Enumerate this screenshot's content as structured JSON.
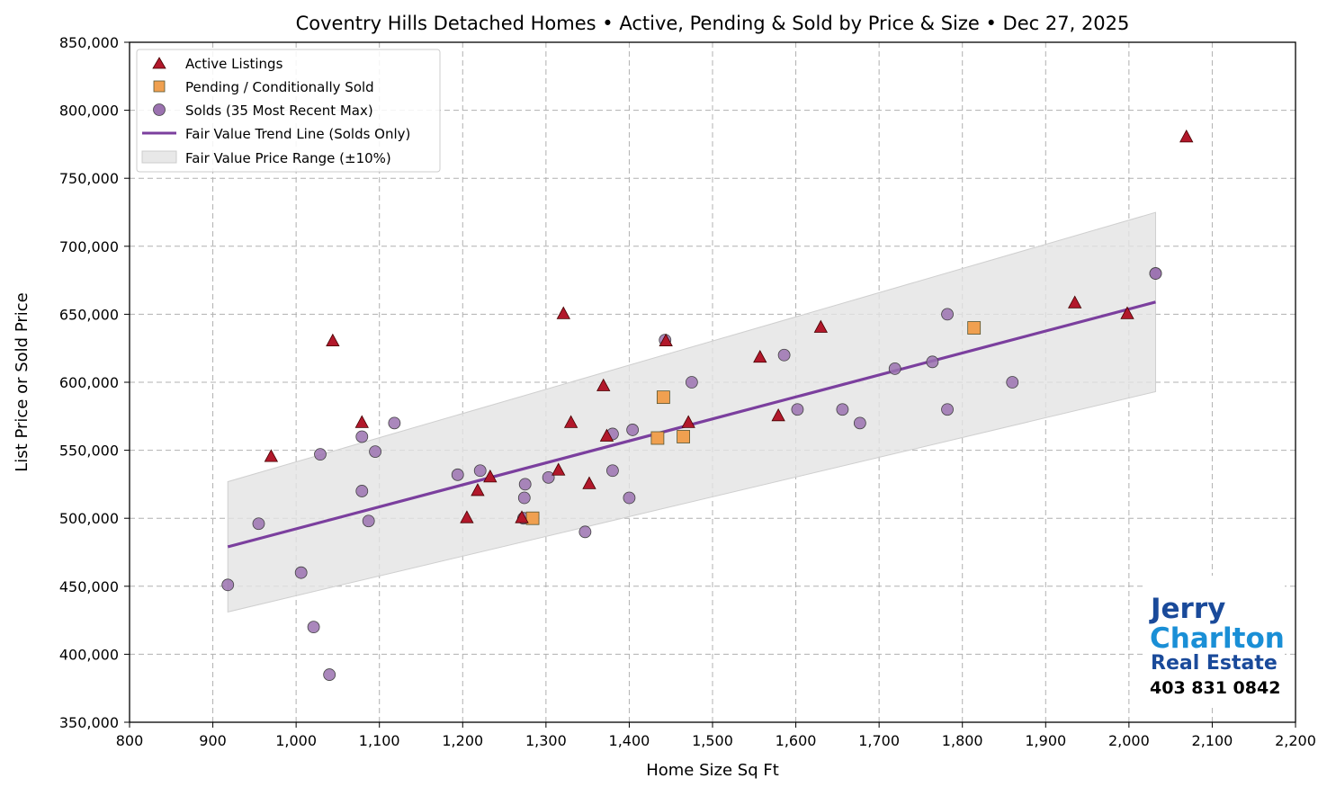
{
  "chart_data": {
    "type": "scatter",
    "title": "Coventry Hills Detached Homes • Active, Pending & Sold by Price & Size • Dec 27, 2025",
    "xlabel": "Home Size Sq Ft",
    "ylabel": "List Price or Sold Price",
    "xlim": [
      800,
      2200
    ],
    "ylim": [
      350000,
      850000
    ],
    "xticks": [
      800,
      900,
      1000,
      1100,
      1200,
      1300,
      1400,
      1500,
      1600,
      1700,
      1800,
      1900,
      2000,
      2100,
      2200
    ],
    "xtick_labels": [
      "800",
      "900",
      "1,000",
      "1,100",
      "1,200",
      "1,300",
      "1,400",
      "1,500",
      "1,600",
      "1,700",
      "1,800",
      "1,900",
      "2,000",
      "2,100",
      "2,200"
    ],
    "yticks": [
      350000,
      400000,
      450000,
      500000,
      550000,
      600000,
      650000,
      700000,
      750000,
      800000,
      850000
    ],
    "ytick_labels": [
      "350,000",
      "400,000",
      "450,000",
      "500,000",
      "550,000",
      "600,000",
      "650,000",
      "700,000",
      "750,000",
      "800,000",
      "850,000"
    ],
    "grid": true,
    "legend_position": "top-left",
    "series": [
      {
        "name": "Active Listings",
        "marker": "triangle",
        "color": "#b2182b",
        "points": [
          [
            970,
            545000
          ],
          [
            1044,
            630000
          ],
          [
            1079,
            570000
          ],
          [
            1321,
            650000
          ],
          [
            1218,
            520000
          ],
          [
            1233,
            530000
          ],
          [
            1205,
            500000
          ],
          [
            1271,
            500000
          ],
          [
            1315,
            535000
          ],
          [
            1330,
            570000
          ],
          [
            1352,
            525000
          ],
          [
            1369,
            597000
          ],
          [
            1373,
            560000
          ],
          [
            1444,
            630000
          ],
          [
            1471,
            570000
          ],
          [
            1557,
            618000
          ],
          [
            1579,
            575000
          ],
          [
            1630,
            640000
          ],
          [
            1935,
            658000
          ],
          [
            1998,
            650000
          ],
          [
            2069,
            780000
          ]
        ]
      },
      {
        "name": "Pending / Conditionally Sold",
        "marker": "square",
        "color": "#f0a050",
        "points": [
          [
            1284,
            500000
          ],
          [
            1434,
            559000
          ],
          [
            1441,
            589000
          ],
          [
            1465,
            560000
          ],
          [
            1814,
            640000
          ]
        ]
      },
      {
        "name": "Solds (35 Most Recent Max)",
        "marker": "circle",
        "color": "#9b72b0",
        "points": [
          [
            918,
            451000
          ],
          [
            955,
            496000
          ],
          [
            1006,
            460000
          ],
          [
            1021,
            420000
          ],
          [
            1040,
            385000
          ],
          [
            1029,
            547000
          ],
          [
            1079,
            560000
          ],
          [
            1079,
            520000
          ],
          [
            1087,
            498000
          ],
          [
            1095,
            549000
          ],
          [
            1118,
            570000
          ],
          [
            1194,
            532000
          ],
          [
            1221,
            535000
          ],
          [
            1275,
            525000
          ],
          [
            1274,
            515000
          ],
          [
            1273,
            500000
          ],
          [
            1303,
            530000
          ],
          [
            1347,
            490000
          ],
          [
            1380,
            562000
          ],
          [
            1380,
            535000
          ],
          [
            1404,
            565000
          ],
          [
            1400,
            515000
          ],
          [
            1443,
            631000
          ],
          [
            1475,
            600000
          ],
          [
            1586,
            620000
          ],
          [
            1602,
            580000
          ],
          [
            1656,
            580000
          ],
          [
            1677,
            570000
          ],
          [
            1719,
            610000
          ],
          [
            1764,
            615000
          ],
          [
            1782,
            650000
          ],
          [
            1782,
            580000
          ],
          [
            1860,
            600000
          ],
          [
            2032,
            680000
          ],
          [
            2032,
            680000
          ]
        ]
      }
    ],
    "trend_line": {
      "name": "Fair Value Trend Line (Solds Only)",
      "color": "#7b3f9e",
      "x": [
        918,
        2032
      ],
      "y": [
        479000,
        659000
      ]
    },
    "range_band": {
      "name": "Fair Value Price Range (±10%)",
      "color": "#e0e0e0",
      "pct": 10
    }
  },
  "logo": {
    "line1": "Jerry",
    "line2": "Charlton",
    "line3": "Real Estate",
    "phone": "403 831 0842"
  }
}
